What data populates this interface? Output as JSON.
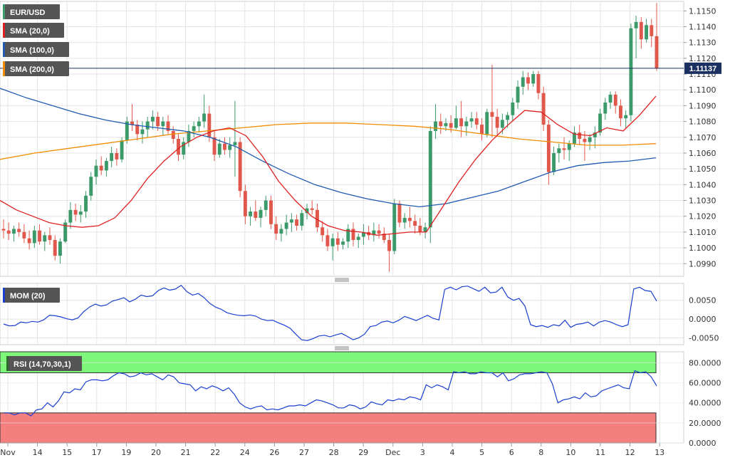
{
  "colors": {
    "up": "#3c9a6a",
    "down": "#e0584c",
    "sma20": "#e02020",
    "sma100": "#1f5bb0",
    "sma200": "#f08c00",
    "mom": "#1a3fcf",
    "rsi": "#1a3fcf",
    "rsi_overbought": "#7ef77a",
    "rsi_oversold": "#f47f7f",
    "tag_bg": "#555555",
    "price_line": "#1a3060",
    "grid": "#e4e4e4"
  },
  "legend": {
    "symbol": "EUR/USD",
    "sma20": "SMA (20,0)",
    "sma100": "SMA (100,0)",
    "sma200": "SMA (200,0)",
    "mom": "MOM (20)",
    "rsi": "RSI (14,70,30,1)"
  },
  "current_price_label": "1.11137",
  "chart_data": [
    {
      "type": "candlestick",
      "panel": "price",
      "ylim": [
        1.0982,
        1.1156
      ],
      "y_ticks": [
        "1.1150",
        "1.1140",
        "1.1130",
        "1.1120",
        "1.1110",
        "1.1100",
        "1.1090",
        "1.1080",
        "1.1070",
        "1.1060",
        "1.1050",
        "1.1040",
        "1.1030",
        "1.1020",
        "1.1010",
        "1.1000",
        "1.0990"
      ],
      "x_tick_labels": [
        "Nov",
        "14",
        "15",
        "17",
        "19",
        "20",
        "21",
        "22",
        "24",
        "26",
        "27",
        "28",
        "29",
        "Dec",
        "3",
        "4",
        "5",
        "6",
        "8",
        "10",
        "11",
        "12",
        "13"
      ],
      "current_price": 1.11137,
      "ohlc": [
        [
          1.1012,
          1.1018,
          1.1006,
          1.1011
        ],
        [
          1.1011,
          1.1016,
          1.1005,
          1.1009
        ],
        [
          1.1009,
          1.1014,
          1.1004,
          1.1012
        ],
        [
          1.1012,
          1.1016,
          1.1007,
          1.101
        ],
        [
          1.101,
          1.1015,
          1.1003,
          1.1006
        ],
        [
          1.1006,
          1.1011,
          1.0999,
          1.1003
        ],
        [
          1.1003,
          1.1014,
          1.1,
          1.1011
        ],
        [
          1.1011,
          1.1015,
          1.1002,
          1.1004
        ],
        [
          1.1004,
          1.101,
          1.0998,
          1.1008
        ],
        [
          1.1008,
          1.1013,
          1.1002,
          1.1005
        ],
        [
          1.1005,
          1.1008,
          1.0992,
          1.0995
        ],
        [
          1.0995,
          1.1006,
          1.099,
          1.1004
        ],
        [
          1.1004,
          1.1018,
          1.1003,
          1.1016
        ],
        [
          1.1016,
          1.1029,
          1.1012,
          1.1024
        ],
        [
          1.1024,
          1.1028,
          1.1017,
          1.1021
        ],
        [
          1.1021,
          1.1027,
          1.1016,
          1.1023
        ],
        [
          1.1023,
          1.1036,
          1.1019,
          1.1033
        ],
        [
          1.1033,
          1.1048,
          1.103,
          1.1045
        ],
        [
          1.1045,
          1.1056,
          1.104,
          1.1052
        ],
        [
          1.1052,
          1.1058,
          1.1046,
          1.1049
        ],
        [
          1.1049,
          1.1057,
          1.1045,
          1.1055
        ],
        [
          1.1055,
          1.1064,
          1.1051,
          1.106
        ],
        [
          1.106,
          1.1063,
          1.1052,
          1.1056
        ],
        [
          1.1056,
          1.107,
          1.1054,
          1.1068
        ],
        [
          1.1068,
          1.1083,
          1.1066,
          1.108
        ],
        [
          1.108,
          1.1091,
          1.1074,
          1.1078
        ],
        [
          1.1078,
          1.1081,
          1.1068,
          1.1072
        ],
        [
          1.1072,
          1.108,
          1.1066,
          1.1075
        ],
        [
          1.1075,
          1.1083,
          1.107,
          1.108
        ],
        [
          1.108,
          1.1087,
          1.1075,
          1.1083
        ],
        [
          1.1083,
          1.1086,
          1.1074,
          1.1077
        ],
        [
          1.1077,
          1.1083,
          1.1071,
          1.108
        ],
        [
          1.108,
          1.1084,
          1.1072,
          1.1074
        ],
        [
          1.1074,
          1.1077,
          1.1066,
          1.1069
        ],
        [
          1.1069,
          1.1072,
          1.1055,
          1.1059
        ],
        [
          1.1059,
          1.107,
          1.1056,
          1.1067
        ],
        [
          1.1067,
          1.1078,
          1.1064,
          1.1074
        ],
        [
          1.1074,
          1.108,
          1.107,
          1.1077
        ],
        [
          1.1077,
          1.1083,
          1.1073,
          1.108
        ],
        [
          1.108,
          1.1097,
          1.1076,
          1.1085
        ],
        [
          1.1085,
          1.109,
          1.1067,
          1.107
        ],
        [
          1.107,
          1.1074,
          1.1055,
          1.1059
        ],
        [
          1.1059,
          1.1069,
          1.1057,
          1.1066
        ],
        [
          1.1066,
          1.107,
          1.1059,
          1.1062
        ],
        [
          1.1062,
          1.107,
          1.1057,
          1.1065
        ],
        [
          1.1065,
          1.1093,
          1.1045,
          1.1067
        ],
        [
          1.1067,
          1.107,
          1.1032,
          1.1036
        ],
        [
          1.1036,
          1.104,
          1.1015,
          1.102
        ],
        [
          1.102,
          1.1026,
          1.1014,
          1.1023
        ],
        [
          1.1023,
          1.103,
          1.1017,
          1.1019
        ],
        [
          1.1019,
          1.1026,
          1.1013,
          1.1024
        ],
        [
          1.1024,
          1.1033,
          1.102,
          1.103
        ],
        [
          1.103,
          1.1033,
          1.1012,
          1.1015
        ],
        [
          1.1015,
          1.102,
          1.1005,
          1.1009
        ],
        [
          1.1009,
          1.1015,
          1.1004,
          1.1012
        ],
        [
          1.1012,
          1.1021,
          1.1008,
          1.1016
        ],
        [
          1.1016,
          1.1022,
          1.101,
          1.1018
        ],
        [
          1.1018,
          1.1021,
          1.1011,
          1.1014
        ],
        [
          1.1014,
          1.1024,
          1.1011,
          1.1022
        ],
        [
          1.1022,
          1.1028,
          1.1018,
          1.1025
        ],
        [
          1.1025,
          1.103,
          1.1021,
          1.1024
        ],
        [
          1.1024,
          1.1028,
          1.101,
          1.1013
        ],
        [
          1.1013,
          1.1017,
          1.1004,
          1.1008
        ],
        [
          1.1008,
          1.1012,
          1.0998,
          1.1001
        ],
        [
          1.1001,
          1.1009,
          1.0992,
          1.1006
        ],
        [
          1.1006,
          1.101,
          1.0998,
          1.1002
        ],
        [
          1.1002,
          1.1006,
          1.0999,
          1.1004
        ],
        [
          1.1004,
          1.1015,
          1.1,
          1.1012
        ],
        [
          1.1012,
          1.1016,
          1.1001,
          1.1005
        ],
        [
          1.1005,
          1.1009,
          1.1,
          1.1007
        ],
        [
          1.1007,
          1.1015,
          1.1002,
          1.101
        ],
        [
          1.101,
          1.1014,
          1.1005,
          1.1008
        ],
        [
          1.1008,
          1.1016,
          1.1004,
          1.1011
        ],
        [
          1.1011,
          1.1015,
          1.1006,
          1.1009
        ],
        [
          1.1009,
          1.1013,
          1.1003,
          1.1005
        ],
        [
          1.1005,
          1.1009,
          1.0985,
          1.0998
        ],
        [
          1.0998,
          1.1031,
          1.0996,
          1.1028
        ],
        [
          1.1028,
          1.103,
          1.1013,
          1.1016
        ],
        [
          1.1016,
          1.1022,
          1.1012,
          1.1019
        ],
        [
          1.1019,
          1.1026,
          1.1013,
          1.1017
        ],
        [
          1.1017,
          1.1021,
          1.1009,
          1.1014
        ],
        [
          1.1014,
          1.1019,
          1.1008,
          1.101
        ],
        [
          1.101,
          1.1016,
          1.1006,
          1.1013
        ],
        [
          1.1013,
          1.1077,
          1.1003,
          1.1074
        ],
        [
          1.1074,
          1.1091,
          1.1069,
          1.108
        ],
        [
          1.108,
          1.1085,
          1.1072,
          1.1077
        ],
        [
          1.1077,
          1.1082,
          1.1074,
          1.1079
        ],
        [
          1.1079,
          1.1084,
          1.1073,
          1.1076
        ],
        [
          1.1076,
          1.109,
          1.1075,
          1.1082
        ],
        [
          1.1082,
          1.1093,
          1.107,
          1.1077
        ],
        [
          1.1077,
          1.1083,
          1.1071,
          1.108
        ],
        [
          1.108,
          1.1086,
          1.1076,
          1.1082
        ],
        [
          1.1082,
          1.1086,
          1.1075,
          1.1078
        ],
        [
          1.1078,
          1.1082,
          1.1068,
          1.1072
        ],
        [
          1.1072,
          1.1088,
          1.107,
          1.1086
        ],
        [
          1.1086,
          1.1116,
          1.107,
          1.1083
        ],
        [
          1.1083,
          1.1088,
          1.1071,
          1.1076
        ],
        [
          1.1076,
          1.1085,
          1.1072,
          1.1081
        ],
        [
          1.1081,
          1.1086,
          1.1076,
          1.1084
        ],
        [
          1.1084,
          1.1095,
          1.108,
          1.1092
        ],
        [
          1.1092,
          1.1106,
          1.1088,
          1.1102
        ],
        [
          1.1102,
          1.1112,
          1.1097,
          1.1108
        ],
        [
          1.1108,
          1.1111,
          1.11,
          1.1104
        ],
        [
          1.1104,
          1.1112,
          1.1102,
          1.111
        ],
        [
          1.111,
          1.1112,
          1.1094,
          1.1098
        ],
        [
          1.1098,
          1.1102,
          1.1074,
          1.1078
        ],
        [
          1.1078,
          1.1081,
          1.104,
          1.1048
        ],
        [
          1.1048,
          1.1064,
          1.1046,
          1.106
        ],
        [
          1.106,
          1.1066,
          1.1054,
          1.1063
        ],
        [
          1.1063,
          1.107,
          1.1056,
          1.1062
        ],
        [
          1.1062,
          1.1068,
          1.1055,
          1.1066
        ],
        [
          1.1066,
          1.1077,
          1.1064,
          1.1073
        ],
        [
          1.1073,
          1.1078,
          1.1065,
          1.1069
        ],
        [
          1.1069,
          1.1074,
          1.1055,
          1.1067
        ],
        [
          1.1067,
          1.1072,
          1.1062,
          1.107
        ],
        [
          1.107,
          1.1077,
          1.1063,
          1.1073
        ],
        [
          1.1073,
          1.1088,
          1.1071,
          1.1085
        ],
        [
          1.1085,
          1.1095,
          1.1081,
          1.1092
        ],
        [
          1.1092,
          1.1099,
          1.1088,
          1.1097
        ],
        [
          1.1097,
          1.1099,
          1.1085,
          1.109
        ],
        [
          1.109,
          1.1094,
          1.1077,
          1.1082
        ],
        [
          1.1082,
          1.1087,
          1.1076,
          1.1084
        ],
        [
          1.1084,
          1.1142,
          1.108,
          1.1139
        ],
        [
          1.1139,
          1.1147,
          1.112,
          1.1143
        ],
        [
          1.1143,
          1.1146,
          1.1126,
          1.1132
        ],
        [
          1.1132,
          1.1145,
          1.113,
          1.1141
        ],
        [
          1.1141,
          1.1145,
          1.1127,
          1.1134
        ],
        [
          1.1134,
          1.1155,
          1.1112,
          1.11137
        ]
      ],
      "sma20": [
        1.103,
        1.1024,
        1.102,
        1.1016,
        1.1014,
        1.1013,
        1.1014,
        1.1019,
        1.103,
        1.1044,
        1.1055,
        1.1064,
        1.107,
        1.1074,
        1.1076,
        1.1071,
        1.1058,
        1.1042,
        1.103,
        1.102,
        1.1014,
        1.1011,
        1.101,
        1.1008,
        1.1009,
        1.101,
        1.101,
        1.1026,
        1.1042,
        1.1056,
        1.1068,
        1.1078,
        1.1087,
        1.1086,
        1.1078,
        1.1072,
        1.1071,
        1.1076,
        1.1074,
        1.1084,
        1.1096
      ],
      "sma100": [
        1.1101,
        1.1095,
        1.109,
        1.1085,
        1.1081,
        1.1078,
        1.1076,
        1.1074,
        1.107,
        1.1064,
        1.1055,
        1.1047,
        1.104,
        1.1035,
        1.1031,
        1.1028,
        1.1026,
        1.1028,
        1.1032,
        1.1036,
        1.1042,
        1.1048,
        1.1052,
        1.1054,
        1.1055,
        1.1057
      ],
      "sma200": [
        1.1056,
        1.106,
        1.1063,
        1.1066,
        1.1069,
        1.1072,
        1.1074,
        1.1076,
        1.1078,
        1.1079,
        1.1079,
        1.1078,
        1.1077,
        1.1075,
        1.1072,
        1.1069,
        1.1067,
        1.1065,
        1.1065,
        1.1066
      ]
    },
    {
      "type": "line",
      "panel": "momentum",
      "ylim": [
        -0.0068,
        0.0095
      ],
      "y_ticks": [
        "0.0050",
        "0.0000",
        "-0.0050"
      ],
      "values": [
        -0.0013,
        -0.0018,
        -0.0017,
        -0.0008,
        -0.001,
        -0.0006,
        -0.0008,
        -0.0002,
        0.001,
        0.0009,
        0.0006,
        0.0001,
        -0.0002,
        0.0003,
        0.002,
        0.0032,
        0.004,
        0.0035,
        0.0038,
        0.0048,
        0.0052,
        0.0057,
        0.0046,
        0.0053,
        0.0064,
        0.006,
        0.0062,
        0.0076,
        0.0083,
        0.0077,
        0.008,
        0.009,
        0.0073,
        0.0064,
        0.0068,
        0.0057,
        0.0042,
        0.0032,
        0.0026,
        0.0017,
        0.0013,
        0.001,
        0.0009,
        0.0011,
        0.0008,
        0.0,
        -0.0004,
        -0.0003,
        -0.001,
        -0.0016,
        -0.0024,
        -0.004,
        -0.0055,
        -0.0057,
        -0.0052,
        -0.0045,
        -0.0043,
        -0.0047,
        -0.0042,
        -0.0038,
        -0.0046,
        -0.0055,
        -0.005,
        -0.004,
        -0.002,
        -0.0017,
        -0.0008,
        -0.0005,
        -0.001,
        -0.0003,
        0.0007,
        0.0002,
        -0.0004,
        0.0003,
        0.001,
        0.0002,
        -0.0002,
        0.0079,
        0.0085,
        0.0078,
        0.0086,
        0.0088,
        0.0081,
        0.0074,
        0.0085,
        0.007,
        0.0072,
        0.0085,
        0.0059,
        0.005,
        0.0055,
        0.0035,
        -0.0015,
        -0.002,
        -0.0017,
        -0.0022,
        -0.0015,
        -0.0018,
        -0.0003,
        -0.0022,
        -0.0014,
        -0.0012,
        -0.0008,
        -0.0018,
        -0.0008,
        -0.0004,
        -0.0008,
        -0.0015,
        -0.002,
        -0.0015,
        0.008,
        0.0085,
        0.0076,
        0.0074,
        0.0048
      ]
    },
    {
      "type": "line",
      "panel": "rsi",
      "ylim": [
        0,
        91
      ],
      "y_ticks": [
        "80.0000",
        "60.0000",
        "40.0000",
        "20.0000",
        "0.0000"
      ],
      "overbought": 70,
      "oversold": 30,
      "values": [
        30,
        30,
        28,
        30,
        30,
        27,
        33,
        34,
        40,
        36,
        42,
        51,
        50,
        54,
        53,
        61,
        63,
        63,
        62,
        63,
        67,
        70,
        69,
        66,
        67,
        70,
        68,
        69,
        66,
        63,
        68,
        66,
        60,
        59,
        58,
        52,
        56,
        54,
        57,
        55,
        52,
        55,
        49,
        40,
        36,
        34,
        36,
        37,
        33,
        34,
        33,
        35,
        37,
        37,
        38,
        37,
        40,
        43,
        42,
        40,
        38,
        35,
        35,
        38,
        37,
        34,
        36,
        41,
        39,
        38,
        43,
        42,
        44,
        43,
        46,
        45,
        43,
        58,
        55,
        58,
        56,
        53,
        71,
        70,
        71,
        69,
        69,
        71,
        70,
        70,
        66,
        70,
        62,
        64,
        68,
        69,
        69,
        70,
        71,
        70,
        59,
        40,
        43,
        44,
        46,
        44,
        50,
        46,
        47,
        52,
        54,
        56,
        58,
        55,
        54,
        72,
        70,
        71,
        66,
        57
      ]
    }
  ]
}
